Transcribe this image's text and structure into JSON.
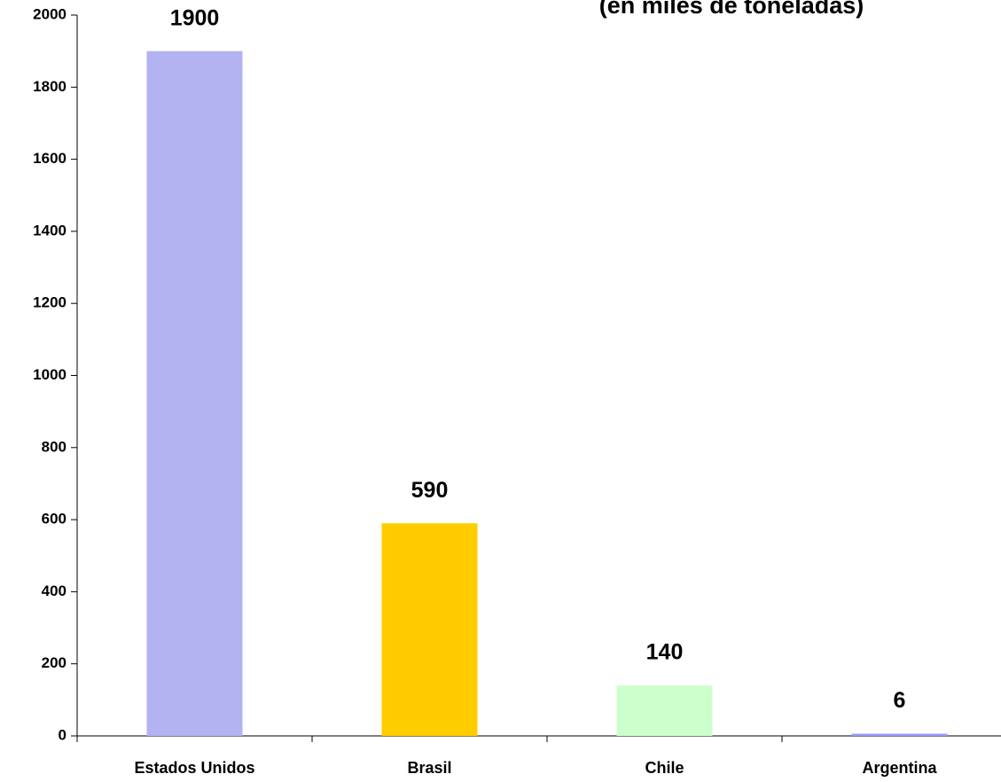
{
  "chart_data": {
    "type": "bar",
    "subtitle": "(en miles de toneladas)",
    "categories": [
      "Estados Unidos",
      "Brasil",
      "Chile",
      "Argentina"
    ],
    "values": [
      1900,
      590,
      140,
      6
    ],
    "colors": [
      "#b3b3f2",
      "#ffcc00",
      "#ccffcc",
      "#9999ff"
    ],
    "ylim": [
      0,
      2000
    ],
    "yticks": [
      0,
      200,
      400,
      600,
      800,
      1000,
      1200,
      1400,
      1600,
      1800,
      2000
    ]
  }
}
